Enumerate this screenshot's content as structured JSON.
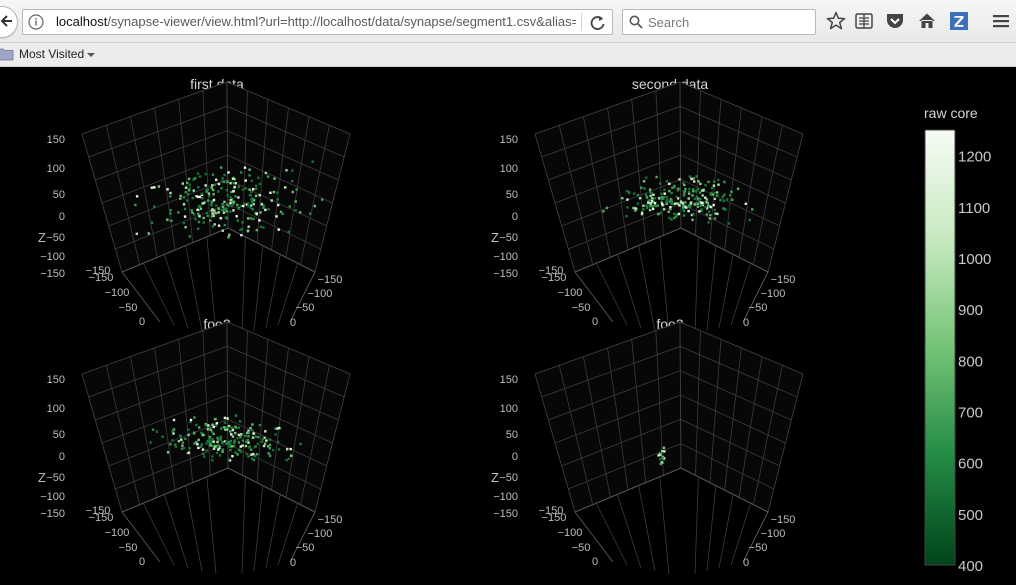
{
  "browser": {
    "url_host": "localhost",
    "url_path": "/synapse-viewer/view.html?url=http://localhost/data/synapse/segment1.csv&alias=",
    "search_placeholder": "Search",
    "bookmarks_label": "Most Visited",
    "icons": [
      "back-arrow-icon",
      "info-icon",
      "reload-icon",
      "search-icon",
      "star-icon",
      "reading-list-icon",
      "pocket-icon",
      "home-icon",
      "zotero-icon",
      "menu-icon",
      "folder-icon"
    ]
  },
  "colors": {
    "background": "#000000",
    "colorscale_low": "#00441b",
    "colorscale_high": "#f7fcf5"
  },
  "chart_data": [
    {
      "type": "scatter3d",
      "title": "first data",
      "zlabel": "Z",
      "z_ticks": [
        "150",
        "100",
        "50",
        "0",
        "−50",
        "−100",
        "−150"
      ],
      "left_ticks": [
        "−100",
        "−50",
        "0"
      ],
      "right_ticks": [
        "−150",
        "−100",
        "−50",
        "0"
      ],
      "point_count": 260,
      "spread": "wide"
    },
    {
      "type": "scatter3d",
      "title": "second data",
      "zlabel": "Z",
      "z_ticks": [
        "150",
        "100",
        "50",
        "0",
        "−50",
        "−100",
        "−150"
      ],
      "left_ticks": [
        "−100",
        "−50",
        "0"
      ],
      "right_ticks": [
        "−150",
        "−100",
        "−50",
        "0"
      ],
      "point_count": 240,
      "spread": "dense"
    },
    {
      "type": "scatter3d",
      "title": "foo2",
      "zlabel": "Z",
      "z_ticks": [
        "150",
        "100",
        "50",
        "0",
        "−50",
        "−100",
        "−150"
      ],
      "left_ticks": [
        "−100",
        "−50",
        "0"
      ],
      "right_ticks": [
        "−150",
        "−100",
        "−50",
        "0"
      ],
      "point_count": 220,
      "spread": "dense"
    },
    {
      "type": "scatter3d",
      "title": "foo3",
      "zlabel": "Z",
      "z_ticks": [
        "150",
        "100",
        "50",
        "0",
        "−50",
        "−100",
        "−150"
      ],
      "left_ticks": [
        "−100",
        "−50",
        "0"
      ],
      "right_ticks": [
        "−150",
        "−100",
        "−50",
        "0"
      ],
      "point_count": 16,
      "spread": "sparse"
    }
  ],
  "colorbar": {
    "title": "raw core",
    "ticks": [
      "1200",
      "1100",
      "1000",
      "900",
      "800",
      "700",
      "600",
      "500",
      "400"
    ],
    "min": 400,
    "max": 1250
  }
}
